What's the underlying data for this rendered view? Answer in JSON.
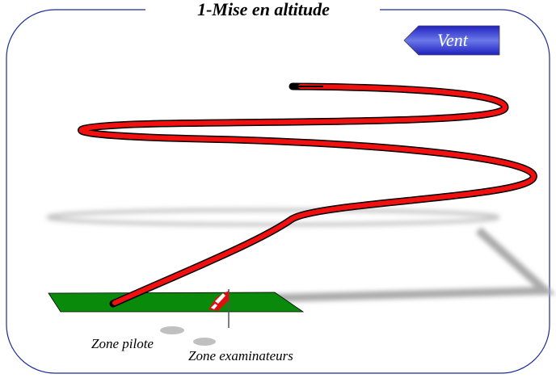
{
  "title": "1-Mise en altitude",
  "wind_label": "Vent",
  "labels": {
    "pilot_zone": "Zone pilote",
    "examiner_zone": "Zone examinateurs"
  }
}
